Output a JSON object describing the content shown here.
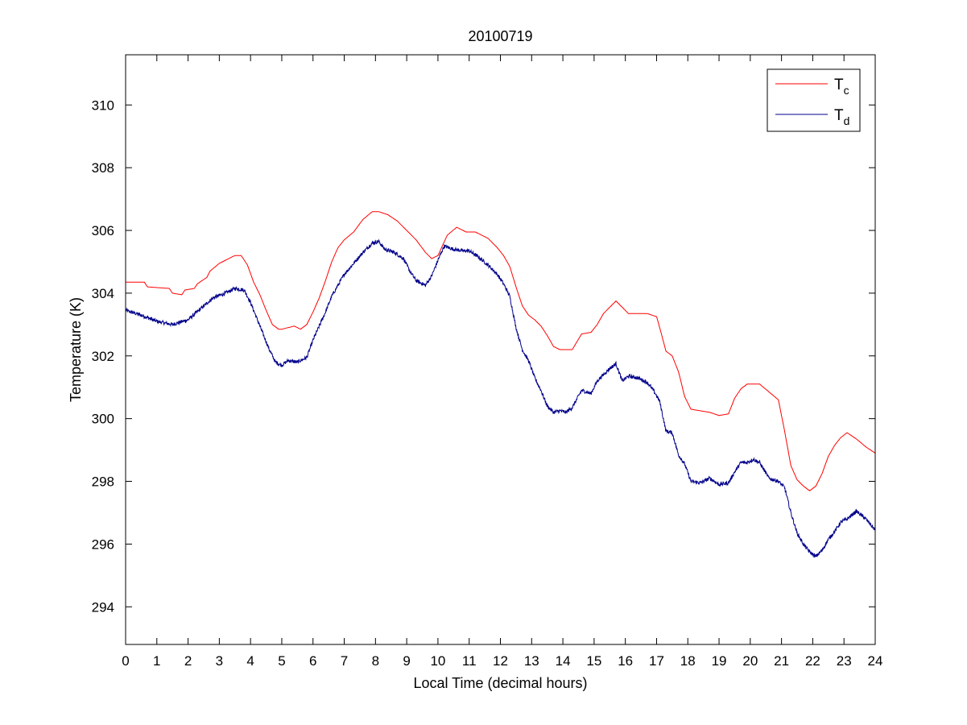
{
  "chart_data": {
    "type": "line",
    "title": "20100719",
    "xlabel": "Local Time (decimal hours)",
    "ylabel": "Temperature (K)",
    "xlim": [
      0,
      24
    ],
    "ylim": [
      292.8,
      311.6
    ],
    "xticks": [
      0,
      1,
      2,
      3,
      4,
      5,
      6,
      7,
      8,
      9,
      10,
      11,
      12,
      13,
      14,
      15,
      16,
      17,
      18,
      19,
      20,
      21,
      22,
      23,
      24
    ],
    "yticks": [
      294,
      296,
      298,
      300,
      302,
      304,
      306,
      308,
      310
    ],
    "grid": false,
    "legend_position": "top-right",
    "series": [
      {
        "name": "Tc",
        "name_main": "T",
        "name_sub": "c",
        "color": "#ff0000",
        "x": [
          0,
          0.6,
          0.7,
          1.4,
          1.5,
          1.8,
          1.9,
          2.2,
          2.3,
          2.6,
          2.7,
          3.0,
          3.3,
          3.5,
          3.7,
          3.9,
          4.1,
          4.3,
          4.5,
          4.7,
          4.9,
          5.0,
          5.2,
          5.4,
          5.6,
          5.8,
          6.0,
          6.2,
          6.4,
          6.6,
          6.8,
          7.0,
          7.3,
          7.6,
          7.9,
          8.1,
          8.4,
          8.7,
          9.0,
          9.3,
          9.6,
          9.8,
          10.0,
          10.3,
          10.6,
          10.9,
          11.2,
          11.6,
          11.9,
          12.1,
          12.3,
          12.5,
          12.7,
          12.9,
          13.1,
          13.3,
          13.5,
          13.7,
          13.9,
          14.1,
          14.3,
          14.6,
          14.9,
          15.1,
          15.3,
          15.5,
          15.7,
          15.9,
          16.1,
          16.4,
          16.7,
          17.0,
          17.1,
          17.3,
          17.5,
          17.7,
          17.9,
          18.1,
          18.4,
          18.7,
          19.0,
          19.3,
          19.5,
          19.7,
          19.9,
          20.1,
          20.3,
          20.6,
          20.9,
          21.1,
          21.3,
          21.5,
          21.7,
          21.9,
          22.1,
          22.3,
          22.5,
          22.7,
          22.9,
          23.1,
          23.4,
          23.7,
          24.0
        ],
        "values": [
          304.35,
          304.35,
          304.2,
          304.15,
          304.0,
          303.95,
          304.1,
          304.15,
          304.3,
          304.5,
          304.7,
          304.95,
          305.1,
          305.2,
          305.2,
          304.9,
          304.35,
          303.95,
          303.45,
          303.0,
          302.85,
          302.85,
          302.9,
          302.95,
          302.85,
          303.0,
          303.4,
          303.85,
          304.4,
          305.0,
          305.45,
          305.7,
          305.95,
          306.35,
          306.6,
          306.6,
          306.5,
          306.3,
          306.0,
          305.7,
          305.3,
          305.1,
          305.2,
          305.85,
          306.1,
          305.95,
          305.95,
          305.75,
          305.45,
          305.2,
          304.85,
          304.2,
          303.6,
          303.3,
          303.15,
          302.95,
          302.65,
          302.3,
          302.2,
          302.2,
          302.2,
          302.7,
          302.75,
          303.0,
          303.35,
          303.55,
          303.75,
          303.55,
          303.35,
          303.35,
          303.35,
          303.25,
          302.9,
          302.15,
          302.0,
          301.5,
          300.7,
          300.3,
          300.25,
          300.2,
          300.1,
          300.15,
          300.65,
          300.95,
          301.1,
          301.1,
          301.1,
          300.85,
          300.6,
          299.6,
          298.5,
          298.05,
          297.85,
          297.7,
          297.85,
          298.25,
          298.8,
          299.15,
          299.4,
          299.55,
          299.35,
          299.1,
          298.9
        ]
      },
      {
        "name": "Td",
        "name_main": "T",
        "name_sub": "d",
        "color": "#00008b",
        "x": [
          0,
          0.5,
          1.0,
          1.5,
          2.0,
          2.4,
          2.8,
          3.2,
          3.5,
          3.8,
          4.0,
          4.2,
          4.4,
          4.6,
          4.8,
          5.0,
          5.2,
          5.5,
          5.8,
          6.0,
          6.2,
          6.4,
          6.6,
          6.8,
          7.0,
          7.3,
          7.6,
          7.9,
          8.1,
          8.3,
          8.6,
          8.9,
          9.1,
          9.3,
          9.6,
          9.8,
          10.0,
          10.2,
          10.5,
          10.8,
          11.0,
          11.3,
          11.6,
          11.9,
          12.1,
          12.3,
          12.5,
          12.7,
          12.9,
          13.1,
          13.3,
          13.5,
          13.7,
          13.9,
          14.1,
          14.3,
          14.6,
          14.9,
          15.1,
          15.3,
          15.5,
          15.7,
          15.9,
          16.1,
          16.4,
          16.7,
          16.9,
          17.1,
          17.3,
          17.5,
          17.7,
          17.9,
          18.1,
          18.4,
          18.7,
          19.0,
          19.3,
          19.5,
          19.7,
          19.9,
          20.1,
          20.3,
          20.6,
          20.9,
          21.1,
          21.3,
          21.5,
          21.7,
          21.9,
          22.1,
          22.3,
          22.5,
          22.7,
          22.9,
          23.1,
          23.4,
          23.7,
          24.0
        ],
        "values": [
          303.45,
          303.3,
          303.1,
          303.0,
          303.15,
          303.5,
          303.85,
          304.0,
          304.15,
          304.1,
          303.7,
          303.2,
          302.7,
          302.2,
          301.8,
          301.7,
          301.85,
          301.8,
          301.95,
          302.5,
          302.95,
          303.4,
          303.9,
          304.25,
          304.6,
          304.95,
          305.3,
          305.6,
          305.65,
          305.4,
          305.3,
          305.1,
          304.7,
          304.4,
          304.25,
          304.55,
          305.05,
          305.5,
          305.4,
          305.35,
          305.35,
          305.15,
          304.9,
          304.6,
          304.3,
          303.9,
          302.9,
          302.2,
          301.85,
          301.3,
          300.9,
          300.4,
          300.2,
          300.25,
          300.2,
          300.35,
          300.9,
          300.8,
          301.2,
          301.4,
          301.6,
          301.75,
          301.2,
          301.35,
          301.3,
          301.15,
          300.9,
          300.55,
          299.6,
          299.55,
          298.85,
          298.55,
          298.0,
          297.95,
          298.1,
          297.9,
          297.95,
          298.3,
          298.6,
          298.6,
          298.7,
          298.6,
          298.1,
          298.0,
          297.8,
          297.0,
          296.35,
          296.0,
          295.75,
          295.6,
          295.8,
          296.15,
          296.4,
          296.7,
          296.8,
          297.05,
          296.8,
          296.45
        ]
      }
    ]
  }
}
